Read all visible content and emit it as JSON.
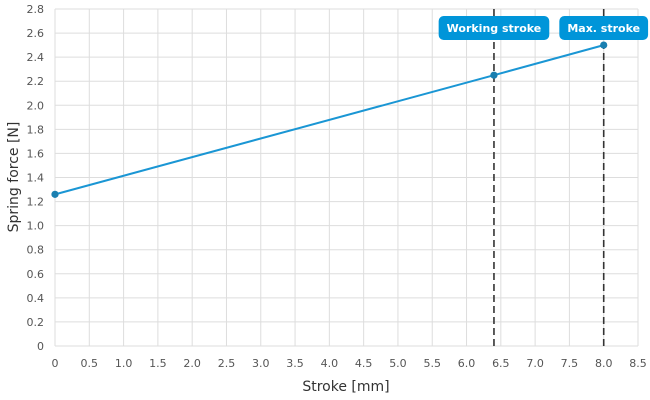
{
  "chart_data": {
    "type": "line",
    "xlabel": "Stroke [mm]",
    "ylabel": "Spring force [N]",
    "xlim": [
      0,
      8.5
    ],
    "ylim": [
      0,
      2.8
    ],
    "x_ticks": [
      0,
      0.5,
      1.0,
      1.5,
      2.0,
      2.5,
      3.0,
      3.5,
      4.0,
      4.5,
      5.0,
      5.5,
      6.0,
      6.5,
      7.0,
      7.5,
      8.0,
      8.5
    ],
    "x_tick_labels": [
      "0",
      "0.5",
      "1.0",
      "1.5",
      "2.0",
      "2.5",
      "3.0",
      "3.5",
      "4.0",
      "4.5",
      "5.0",
      "5.5",
      "6.0",
      "6.5",
      "7.0",
      "7.5",
      "8.0",
      "8.5"
    ],
    "y_ticks": [
      0,
      0.2,
      0.4,
      0.6,
      0.8,
      1.0,
      1.2,
      1.4,
      1.6,
      1.8,
      2.0,
      2.2,
      2.4,
      2.6,
      2.8
    ],
    "y_tick_labels": [
      "0",
      "0.2",
      "0.4",
      "0.6",
      "0.8",
      "1.0",
      "1.2",
      "1.4",
      "1.6",
      "1.8",
      "2.0",
      "2.2",
      "2.4",
      "2.6",
      "2.8"
    ],
    "grid": true,
    "series": [
      {
        "x": [
          0,
          6.4,
          8.0
        ],
        "y": [
          1.26,
          2.25,
          2.5
        ],
        "color": "#1a96d4"
      }
    ],
    "annotations": [
      {
        "label": "Working stroke",
        "x": 6.4,
        "line_style": "dashed"
      },
      {
        "label": "Max. stroke",
        "x": 8.0,
        "line_style": "dashed"
      }
    ],
    "colors": {
      "line": "#1a96d4",
      "marker": "#1a7fb0",
      "callout": "#0095d9",
      "marker_line": "#333333",
      "grid": "#dddddd"
    }
  }
}
